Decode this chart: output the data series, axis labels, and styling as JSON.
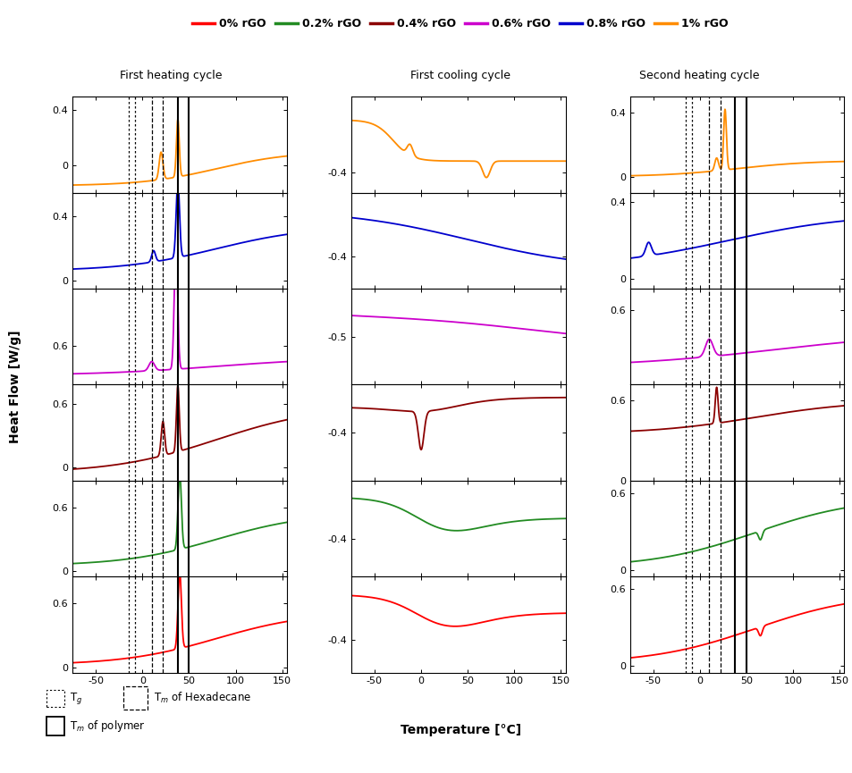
{
  "colors": {
    "0% rGO": "#ff0000",
    "0.2% rGO": "#228B22",
    "0.4% rGO": "#8B0000",
    "0.6% rGO": "#CC00CC",
    "0.8% rGO": "#0000CD",
    "1% rGO": "#FF8C00"
  },
  "legend_labels": [
    "0% rGO",
    "0.2% rGO",
    "0.4% rGO",
    "0.6% rGO",
    "0.8% rGO",
    "1% rGO"
  ],
  "col_titles": [
    "First heating cycle",
    "First cooling cycle",
    "Second heating cycle"
  ],
  "xlabel": "Temperature [°C]",
  "ylabel": "Heat Flow [W/g]",
  "xlim": [
    -75,
    155
  ],
  "vlines_dotted": [
    -15,
    -8
  ],
  "vlines_dashed": [
    10,
    22
  ],
  "vlines_solid": [
    38,
    50
  ]
}
